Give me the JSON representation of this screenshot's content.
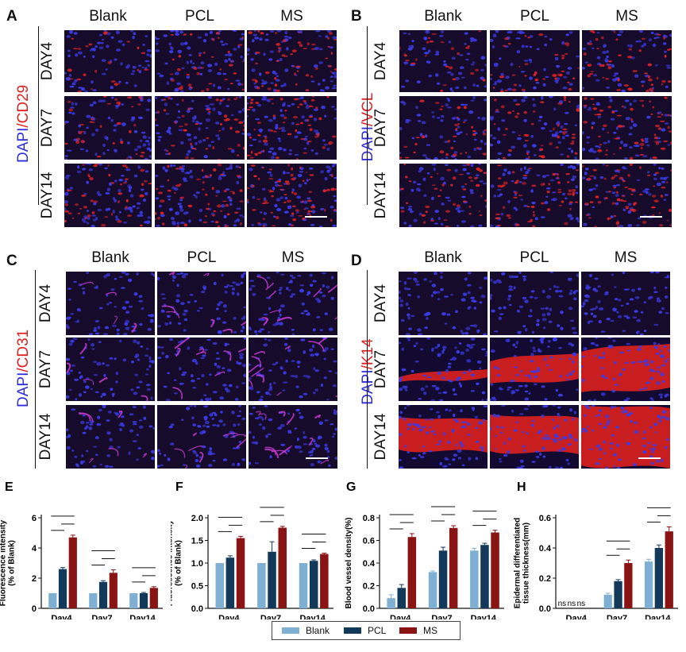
{
  "panels": [
    {
      "letter": "A",
      "stain_a": "DAPI",
      "stain_sep": "/",
      "stain_b": "CD29",
      "kind": "cells"
    },
    {
      "letter": "B",
      "stain_a": "DAPI",
      "stain_sep": "/",
      "stain_b": "VCL",
      "kind": "cells"
    },
    {
      "letter": "C",
      "stain_a": "DAPI",
      "stain_sep": "/",
      "stain_b": "CD31",
      "kind": "vessels"
    },
    {
      "letter": "D",
      "stain_a": "DAPI",
      "stain_sep": "/",
      "stain_b": "K14",
      "kind": "epidermis"
    }
  ],
  "columns": [
    "Blank",
    "PCL",
    "MS"
  ],
  "rows": [
    "DAY4",
    "DAY7",
    "DAY14"
  ],
  "colors": {
    "blank": "#7fb0d4",
    "pcl": "#13395a",
    "ms": "#8a1414",
    "dapi": "#2d2de0",
    "stain": "#e02020"
  },
  "chart_data": [
    {
      "letter": "E",
      "type": "bar",
      "ylabel": "Fluorescence intensity\n(% of Blank)",
      "ylim": [
        0,
        6
      ],
      "yticks": [
        "0",
        "2",
        "4",
        "6"
      ],
      "categories": [
        "Day4",
        "Day7",
        "Day14"
      ],
      "series": [
        {
          "name": "Blank",
          "values": [
            1,
            1,
            1
          ],
          "err": [
            0,
            0,
            0
          ]
        },
        {
          "name": "PCL",
          "values": [
            2.6,
            1.75,
            1.0
          ],
          "err": [
            0.1,
            0.08,
            0.05
          ]
        },
        {
          "name": "MS",
          "values": [
            4.7,
            2.35,
            1.35
          ],
          "err": [
            0.15,
            0.2,
            0.08
          ]
        }
      ],
      "labels": []
    },
    {
      "letter": "F",
      "type": "bar",
      "ylabel": "Fluorescence intensity\n(% of Blank)",
      "ylim": [
        0,
        2.0
      ],
      "yticks": [
        "0.0",
        "0.5",
        "1.0",
        "1.5",
        "2.0"
      ],
      "categories": [
        "Day4",
        "Day7",
        "Day14"
      ],
      "series": [
        {
          "name": "Blank",
          "values": [
            1.0,
            1.0,
            1.0
          ],
          "err": [
            0,
            0,
            0
          ]
        },
        {
          "name": "PCL",
          "values": [
            1.12,
            1.25,
            1.05
          ],
          "err": [
            0.04,
            0.22,
            0.02
          ]
        },
        {
          "name": "MS",
          "values": [
            1.55,
            1.78,
            1.2
          ],
          "err": [
            0.04,
            0.03,
            0.02
          ]
        }
      ],
      "labels": []
    },
    {
      "letter": "G",
      "type": "bar",
      "ylabel": "Blood vessel density(%)",
      "ylim": [
        0,
        0.8
      ],
      "yticks": [
        "0.0",
        "0.2",
        "0.4",
        "0.6",
        "0.8"
      ],
      "categories": [
        "Day4",
        "Day7",
        "Day14"
      ],
      "series": [
        {
          "name": "Blank",
          "values": [
            0.09,
            0.32,
            0.51
          ],
          "err": [
            0.03,
            0.01,
            0.02
          ]
        },
        {
          "name": "PCL",
          "values": [
            0.18,
            0.51,
            0.56
          ],
          "err": [
            0.03,
            0.03,
            0.015
          ]
        },
        {
          "name": "MS",
          "values": [
            0.63,
            0.71,
            0.67
          ],
          "err": [
            0.03,
            0.02,
            0.02
          ]
        }
      ],
      "labels": []
    },
    {
      "letter": "H",
      "type": "bar",
      "ylabel": "Epidermal differentiated\ntissue thickness(mm)",
      "ylim": [
        0,
        0.6
      ],
      "yticks": [
        "0.0",
        "0.2",
        "0.4",
        "0.6"
      ],
      "categories": [
        "Day4",
        "Day7",
        "Day14"
      ],
      "series": [
        {
          "name": "Blank",
          "values": [
            0,
            0.09,
            0.31
          ],
          "err": [
            0,
            0.01,
            0.015
          ]
        },
        {
          "name": "PCL",
          "values": [
            0,
            0.18,
            0.4
          ],
          "err": [
            0,
            0.01,
            0.02
          ]
        },
        {
          "name": "MS",
          "values": [
            0,
            0.3,
            0.51
          ],
          "err": [
            0,
            0.02,
            0.03
          ]
        }
      ],
      "labels": [
        "ns",
        "ns",
        "ns"
      ]
    }
  ],
  "legend": [
    "Blank",
    "PCL",
    "MS"
  ]
}
